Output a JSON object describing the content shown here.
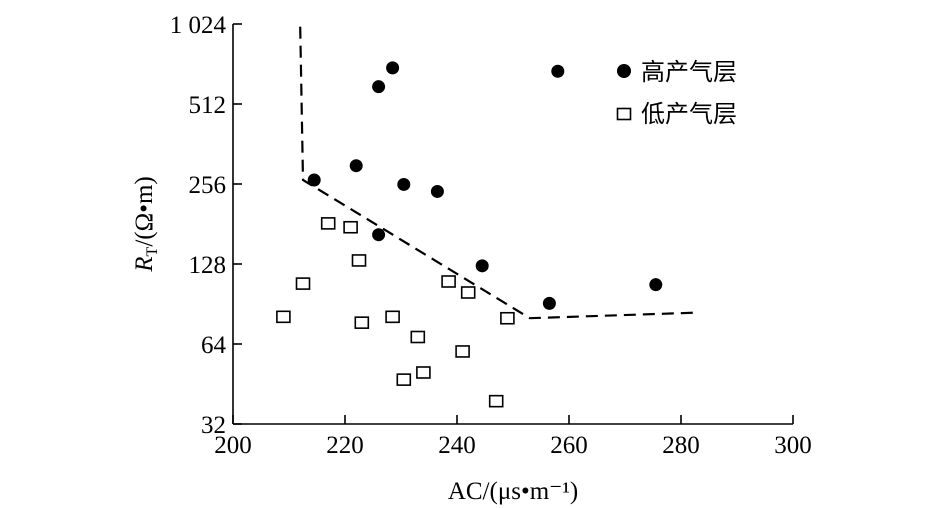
{
  "chart_data": {
    "type": "scatter",
    "title": "",
    "xlabel": "AC/(μs•m⁻¹)",
    "ylabel_main": "R",
    "ylabel_sub": "T",
    "ylabel_rest": "/(Ω•m)",
    "x_range": [
      200,
      300
    ],
    "x_ticks": [
      200,
      220,
      240,
      260,
      280,
      300
    ],
    "y_scale": "log2",
    "y_range": [
      32,
      1024
    ],
    "y_ticks": [
      32,
      64,
      128,
      256,
      512,
      1024
    ],
    "y_tick_labels": [
      "32",
      "64",
      "128",
      "256",
      "512",
      "1 024"
    ],
    "grid": false,
    "legend_position": "top-right",
    "series": [
      {
        "name": "高产气层",
        "marker": "filled-circle",
        "color": "#000000",
        "points": [
          [
            214.5,
            265
          ],
          [
            222,
            300
          ],
          [
            226,
            165
          ],
          [
            226,
            595
          ],
          [
            228.5,
            700
          ],
          [
            230.5,
            255
          ],
          [
            236.5,
            240
          ],
          [
            244.5,
            126
          ],
          [
            256.5,
            91
          ],
          [
            258,
            680
          ],
          [
            275.5,
            107
          ]
        ]
      },
      {
        "name": "低产气层",
        "marker": "open-square",
        "color": "#000000",
        "points": [
          [
            209,
            81
          ],
          [
            212.5,
            108
          ],
          [
            217,
            182
          ],
          [
            221,
            176
          ],
          [
            222.5,
            132
          ],
          [
            223,
            77
          ],
          [
            228.5,
            81
          ],
          [
            230.5,
            47
          ],
          [
            233,
            68
          ],
          [
            234,
            50
          ],
          [
            238.5,
            110
          ],
          [
            241,
            60
          ],
          [
            242,
            100
          ],
          [
            247,
            39
          ],
          [
            249,
            80
          ]
        ]
      }
    ],
    "boundary_line": {
      "style": "dashed",
      "points": [
        [
          212,
          1000
        ],
        [
          212.5,
          265
        ],
        [
          253,
          80
        ],
        [
          283,
          84
        ]
      ]
    }
  }
}
